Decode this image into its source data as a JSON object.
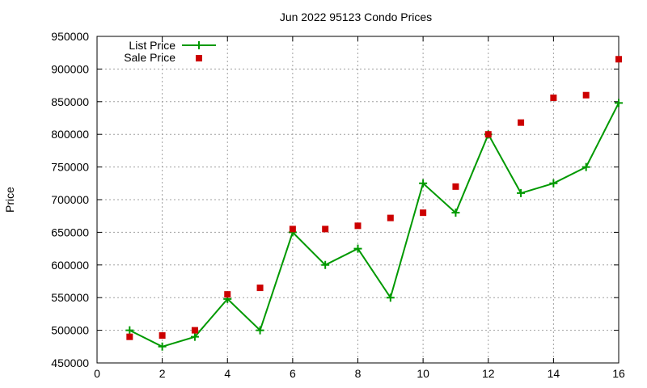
{
  "chart_data": {
    "type": "line",
    "title": "Jun 2022 95123 Condo Prices",
    "xlabel": "",
    "ylabel": "Price",
    "xlim": [
      0,
      16
    ],
    "ylim": [
      450000,
      950000
    ],
    "x_ticks": [
      0,
      2,
      4,
      6,
      8,
      10,
      12,
      14,
      16
    ],
    "y_ticks": [
      450000,
      500000,
      550000,
      600000,
      650000,
      700000,
      750000,
      800000,
      850000,
      900000,
      950000
    ],
    "x_tick_labels": [
      "0",
      "2",
      "4",
      "6",
      "8",
      "10",
      "12",
      "14",
      "16"
    ],
    "y_tick_labels": [
      "450000",
      "500000",
      "550000",
      "600000",
      "650000",
      "700000",
      "750000",
      "800000",
      "850000",
      "900000",
      "950000"
    ],
    "grid": true,
    "legend_placement": "top-left",
    "x": [
      1,
      2,
      3,
      4,
      5,
      6,
      7,
      8,
      9,
      10,
      11,
      12,
      13,
      14,
      15,
      16
    ],
    "series": [
      {
        "name": "List Price",
        "style": "line-with-plus-markers",
        "color": "#009900",
        "values": [
          500000,
          475000,
          490000,
          548000,
          500000,
          650000,
          600000,
          625000,
          550000,
          725000,
          680000,
          800000,
          710000,
          725000,
          750000,
          848000
        ]
      },
      {
        "name": "Sale Price",
        "style": "square-markers",
        "color": "#cc0000",
        "values": [
          490000,
          492000,
          500000,
          555000,
          565000,
          655000,
          655000,
          660000,
          672000,
          680000,
          720000,
          800000,
          818000,
          856000,
          860000,
          915000
        ]
      }
    ]
  }
}
